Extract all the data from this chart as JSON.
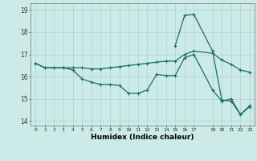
{
  "title": "",
  "xlabel": "Humidex (Indice chaleur)",
  "background_color": "#cceae8",
  "grid_color": "#aad4d0",
  "line_color": "#1a6e62",
  "xlim": [
    -0.5,
    23.5
  ],
  "ylim": [
    13.8,
    19.3
  ],
  "yticks": [
    14,
    15,
    16,
    17,
    18,
    19
  ],
  "xtick_positions": [
    0,
    1,
    2,
    3,
    4,
    5,
    6,
    7,
    8,
    9,
    10,
    11,
    12,
    13,
    14,
    15,
    16,
    17,
    19,
    20,
    21,
    22,
    23
  ],
  "xtick_labels": [
    "0",
    "1",
    "2",
    "3",
    "4",
    "5",
    "6",
    "7",
    "8",
    "9",
    "10",
    "11",
    "12",
    "13",
    "14",
    "15",
    "16",
    "17",
    "19",
    "20",
    "21",
    "22",
    "23"
  ],
  "series1_x": [
    0,
    1,
    2,
    3,
    4,
    5,
    6,
    7,
    8,
    9,
    10,
    11,
    12,
    13,
    14,
    15,
    16,
    17,
    19,
    20,
    21,
    22,
    23
  ],
  "series1_y": [
    16.6,
    16.4,
    16.4,
    16.4,
    16.3,
    15.9,
    15.75,
    15.65,
    15.65,
    15.6,
    15.25,
    15.25,
    15.4,
    16.1,
    16.05,
    16.05,
    16.85,
    17.0,
    15.4,
    14.9,
    15.0,
    14.3,
    14.7
  ],
  "series2_x": [
    0,
    1,
    2,
    3,
    4,
    5,
    6,
    7,
    8,
    9,
    10,
    11,
    12,
    13,
    14,
    15,
    16,
    17,
    19,
    20,
    21,
    22,
    23
  ],
  "series2_y": [
    16.6,
    16.4,
    16.4,
    16.4,
    16.4,
    16.4,
    16.35,
    16.35,
    16.4,
    16.45,
    16.5,
    16.55,
    16.6,
    16.65,
    16.7,
    16.7,
    17.0,
    17.15,
    17.05,
    16.75,
    16.55,
    16.3,
    16.2
  ],
  "series3_x": [
    15,
    16,
    17,
    19,
    20,
    21,
    22,
    23
  ],
  "series3_y": [
    17.4,
    18.75,
    18.8,
    17.15,
    14.95,
    14.9,
    14.3,
    14.65
  ]
}
